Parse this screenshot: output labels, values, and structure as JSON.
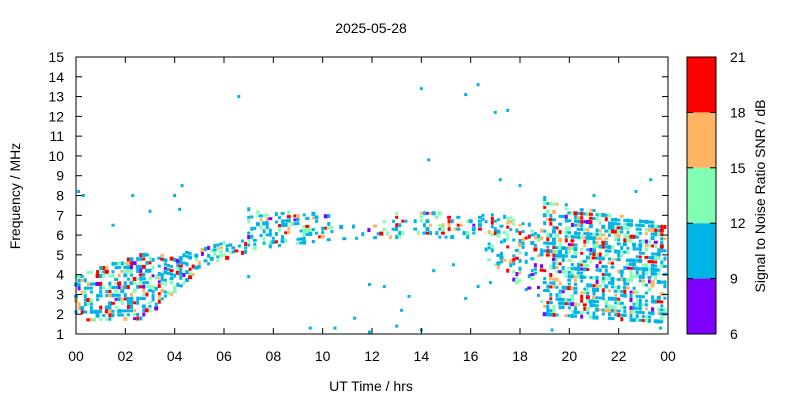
{
  "chart_data": {
    "type": "scatter",
    "title": "2025-05-28",
    "xlabel": "UT Time / hrs",
    "ylabel": "Frequency / MHz",
    "colorbar_label": "Signal to Noise Ratio SNR / dB",
    "xlim": [
      0,
      24
    ],
    "ylim": [
      1,
      15
    ],
    "xticks": [
      "00",
      "02",
      "04",
      "06",
      "08",
      "10",
      "12",
      "14",
      "16",
      "18",
      "20",
      "22",
      "00"
    ],
    "yticks": [
      "1",
      "2",
      "3",
      "4",
      "5",
      "6",
      "7",
      "8",
      "9",
      "10",
      "11",
      "12",
      "13",
      "14",
      "15"
    ],
    "grid": false,
    "colorbar": {
      "range": [
        6,
        21
      ],
      "ticks": [
        "6",
        "9",
        "12",
        "15",
        "18",
        "21"
      ],
      "bins": [
        {
          "min": 6,
          "max": 9,
          "color": "#8000ff"
        },
        {
          "min": 9,
          "max": 12,
          "color": "#00b4e6"
        },
        {
          "min": 12,
          "max": 15,
          "color": "#80ffb4"
        },
        {
          "min": 15,
          "max": 18,
          "color": "#ffb464"
        },
        {
          "min": 18,
          "max": 21,
          "color": "#ff0000"
        }
      ]
    },
    "ionogram_bands": [
      {
        "t": [
          0.0,
          3.0
        ],
        "f_low": [
          1.7,
          1.8
        ],
        "f_high": [
          4.0,
          5.2
        ],
        "density": 0.55
      },
      {
        "t": [
          3.0,
          5.0
        ],
        "f_low": [
          2.0,
          4.3
        ],
        "f_high": [
          4.9,
          5.3
        ],
        "density": 0.5
      },
      {
        "t": [
          5.0,
          7.0
        ],
        "f_low": [
          4.4,
          5.2
        ],
        "f_high": [
          5.4,
          5.8
        ],
        "density": 0.4
      },
      {
        "t": [
          7.0,
          10.5
        ],
        "f_low": [
          5.3,
          5.8
        ],
        "f_high": [
          7.3,
          7.0
        ],
        "density": 0.45
      },
      {
        "t": [
          10.5,
          13.0
        ],
        "f_low": [
          5.8,
          5.9
        ],
        "f_high": [
          6.5,
          6.8
        ],
        "density": 0.2
      },
      {
        "t": [
          13.0,
          16.5
        ],
        "f_low": [
          5.9,
          5.9
        ],
        "f_high": [
          7.3,
          6.9
        ],
        "density": 0.3
      },
      {
        "t": [
          16.5,
          19.0
        ],
        "f_low": [
          5.0,
          2.5
        ],
        "f_high": [
          7.2,
          6.5
        ],
        "density": 0.35
      },
      {
        "t": [
          19.0,
          24.0
        ],
        "f_low": [
          2.0,
          1.6
        ],
        "f_high": [
          7.8,
          6.5
        ],
        "density": 0.55
      }
    ],
    "outliers": [
      {
        "x": 0.1,
        "y": 8.2
      },
      {
        "x": 0.3,
        "y": 8.0
      },
      {
        "x": 1.5,
        "y": 6.5
      },
      {
        "x": 2.3,
        "y": 8.0
      },
      {
        "x": 3.0,
        "y": 7.2
      },
      {
        "x": 4.0,
        "y": 8.0
      },
      {
        "x": 4.3,
        "y": 8.5
      },
      {
        "x": 4.2,
        "y": 7.3
      },
      {
        "x": 6.6,
        "y": 13.0
      },
      {
        "x": 7.0,
        "y": 3.9
      },
      {
        "x": 9.5,
        "y": 1.3
      },
      {
        "x": 10.5,
        "y": 1.3
      },
      {
        "x": 11.3,
        "y": 1.8
      },
      {
        "x": 11.9,
        "y": 1.1
      },
      {
        "x": 11.9,
        "y": 3.5
      },
      {
        "x": 12.5,
        "y": 3.4
      },
      {
        "x": 13.0,
        "y": 1.4
      },
      {
        "x": 13.2,
        "y": 2.2
      },
      {
        "x": 13.5,
        "y": 2.9
      },
      {
        "x": 14.0,
        "y": 1.2
      },
      {
        "x": 14.0,
        "y": 13.4
      },
      {
        "x": 14.3,
        "y": 9.8
      },
      {
        "x": 14.5,
        "y": 4.2
      },
      {
        "x": 15.3,
        "y": 4.5
      },
      {
        "x": 15.8,
        "y": 13.1
      },
      {
        "x": 15.8,
        "y": 2.8
      },
      {
        "x": 16.3,
        "y": 13.6
      },
      {
        "x": 16.3,
        "y": 3.4
      },
      {
        "x": 16.8,
        "y": 3.6
      },
      {
        "x": 17.0,
        "y": 12.2
      },
      {
        "x": 17.2,
        "y": 8.8
      },
      {
        "x": 17.5,
        "y": 12.3
      },
      {
        "x": 18.0,
        "y": 8.5
      },
      {
        "x": 19.0,
        "y": 7.9
      },
      {
        "x": 19.3,
        "y": 1.2
      },
      {
        "x": 21.0,
        "y": 8.0
      },
      {
        "x": 22.7,
        "y": 8.2
      },
      {
        "x": 23.3,
        "y": 8.8
      },
      {
        "x": 23.7,
        "y": 1.3
      }
    ]
  }
}
